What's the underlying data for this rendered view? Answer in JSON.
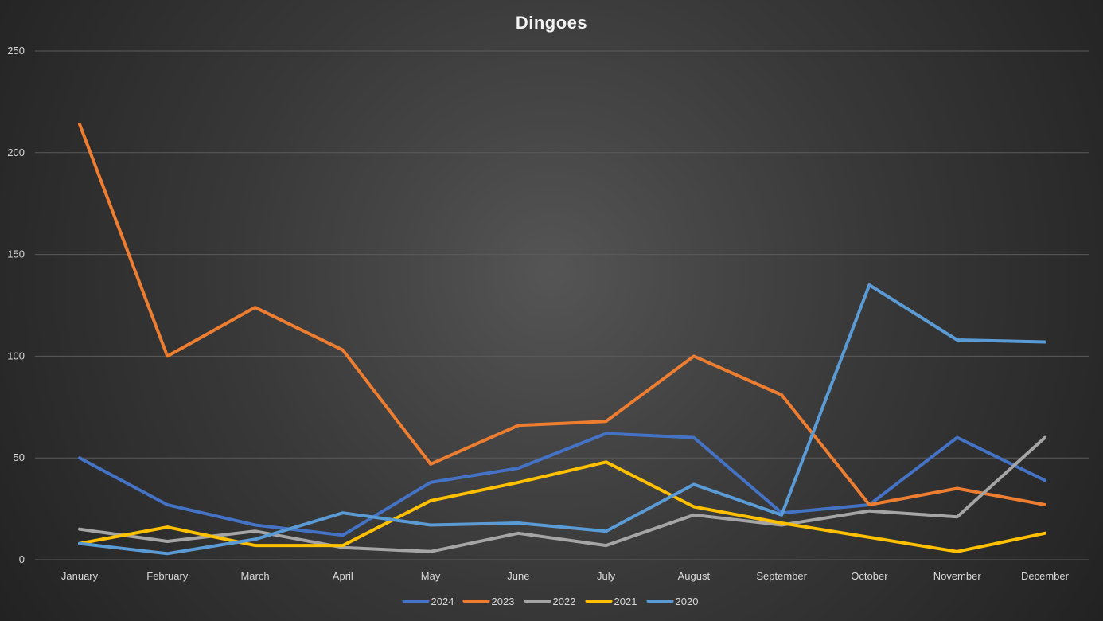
{
  "chart_data": {
    "type": "line",
    "title": "Dingoes",
    "xlabel": "",
    "ylabel": "",
    "ylim": [
      0,
      250
    ],
    "yticks": [
      0,
      50,
      100,
      150,
      200,
      250
    ],
    "grid": true,
    "legend_position": "bottom",
    "categories": [
      "January",
      "February",
      "March",
      "April",
      "May",
      "June",
      "July",
      "August",
      "September",
      "October",
      "November",
      "December"
    ],
    "series": [
      {
        "name": "2024",
        "color": "#4472c4",
        "values": [
          50,
          27,
          17,
          12,
          38,
          45,
          62,
          60,
          23,
          27,
          60,
          39
        ]
      },
      {
        "name": "2023",
        "color": "#ed7d31",
        "values": [
          214,
          100,
          124,
          103,
          47,
          66,
          68,
          100,
          81,
          27,
          35,
          27
        ]
      },
      {
        "name": "2022",
        "color": "#a5a5a5",
        "values": [
          15,
          9,
          14,
          6,
          4,
          13,
          7,
          22,
          17,
          24,
          21,
          60
        ]
      },
      {
        "name": "2021",
        "color": "#ffc000",
        "values": [
          8,
          16,
          7,
          7,
          29,
          38,
          48,
          26,
          18,
          11,
          4,
          13
        ]
      },
      {
        "name": "2020",
        "color": "#5b9bd5",
        "values": [
          8,
          3,
          10,
          23,
          17,
          18,
          14,
          37,
          22,
          135,
          108,
          107
        ]
      }
    ]
  }
}
